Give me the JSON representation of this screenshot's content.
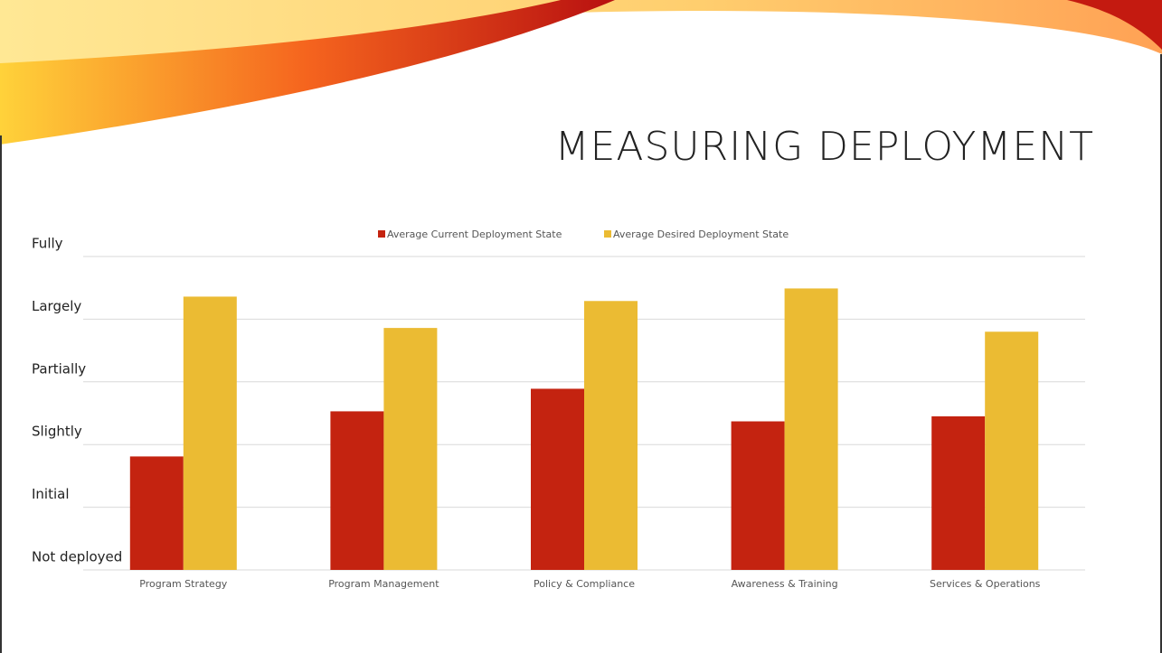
{
  "chart_data": {
    "type": "bar",
    "title": "MEASURING DEPLOYMENT",
    "categories": [
      "Program Strategy",
      "Program Management",
      "Policy & Compliance",
      "Awareness & Training",
      "Services & Operations"
    ],
    "series": [
      {
        "name": "Average Current Deployment State",
        "color": "#c42310",
        "values": [
          1.81,
          2.53,
          2.89,
          2.37,
          2.45
        ]
      },
      {
        "name": "Average Desired Deployment State",
        "color": "#ebbb33",
        "values": [
          4.36,
          3.86,
          4.29,
          4.49,
          3.8
        ]
      }
    ],
    "ylim": [
      0,
      5
    ],
    "yticks": [
      {
        "value": 0,
        "label": "Not deployed"
      },
      {
        "value": 1,
        "label": "Initial"
      },
      {
        "value": 2,
        "label": "Slightly"
      },
      {
        "value": 3,
        "label": "Partially"
      },
      {
        "value": 4,
        "label": "Largely"
      },
      {
        "value": 5,
        "label": "Fully"
      }
    ],
    "grid": true,
    "legend": "top"
  }
}
